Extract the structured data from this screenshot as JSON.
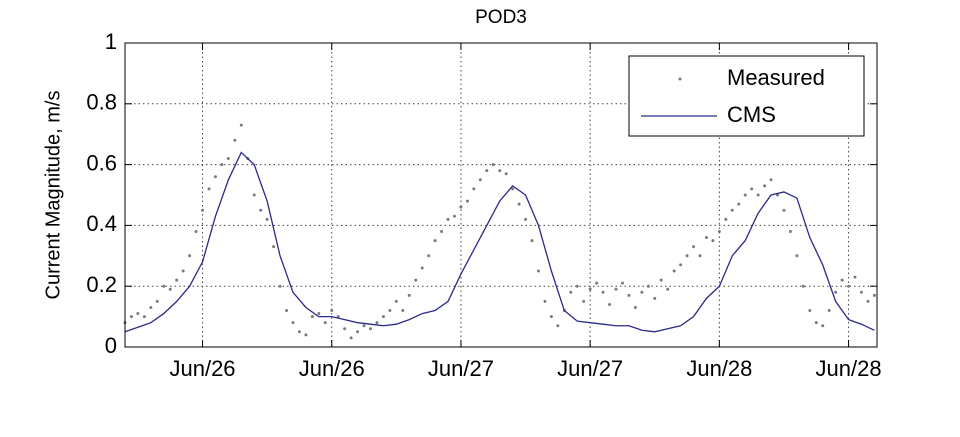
{
  "chart_data": {
    "type": "line",
    "title": "POD3",
    "y_label": "Current Magnitude, m/s",
    "xlim": [
      25.7,
      28.61
    ],
    "ylim": [
      0,
      1
    ],
    "xticks": [
      {
        "value": 26,
        "label": "Jun/26"
      },
      {
        "value": 26.5,
        "label": "Jun/26"
      },
      {
        "value": 27,
        "label": "Jun/27"
      },
      {
        "value": 27.5,
        "label": "Jun/27"
      },
      {
        "value": 28,
        "label": "Jun/28"
      },
      {
        "value": 28.5,
        "label": "Jun/28"
      }
    ],
    "yticks": [
      0,
      0.2,
      0.4,
      0.6,
      0.8,
      1
    ],
    "grid": true,
    "legend": "northeast",
    "series": [
      {
        "name": "Measured",
        "type": "scatter",
        "color": "#7a7a7a",
        "x": [
          25.7,
          25.725,
          25.75,
          25.775,
          25.8,
          25.825,
          25.85,
          25.875,
          25.9,
          25.925,
          25.95,
          25.975,
          26,
          26.025,
          26.05,
          26.075,
          26.1,
          26.125,
          26.15,
          26.175,
          26.2,
          26.225,
          26.25,
          26.275,
          26.3,
          26.325,
          26.35,
          26.375,
          26.4,
          26.425,
          26.45,
          26.475,
          26.5,
          26.525,
          26.55,
          26.575,
          26.6,
          26.625,
          26.65,
          26.675,
          26.7,
          26.725,
          26.75,
          26.775,
          26.8,
          26.825,
          26.85,
          26.875,
          26.9,
          26.925,
          26.95,
          26.975,
          27,
          27.025,
          27.05,
          27.075,
          27.1,
          27.125,
          27.15,
          27.175,
          27.2,
          27.225,
          27.25,
          27.275,
          27.3,
          27.325,
          27.35,
          27.375,
          27.4,
          27.425,
          27.45,
          27.475,
          27.5,
          27.525,
          27.55,
          27.575,
          27.6,
          27.625,
          27.65,
          27.675,
          27.7,
          27.725,
          27.75,
          27.775,
          27.8,
          27.825,
          27.85,
          27.875,
          27.9,
          27.925,
          27.95,
          27.975,
          28,
          28.025,
          28.05,
          28.075,
          28.1,
          28.125,
          28.15,
          28.175,
          28.2,
          28.225,
          28.25,
          28.275,
          28.3,
          28.325,
          28.35,
          28.375,
          28.4,
          28.425,
          28.45,
          28.475,
          28.5,
          28.525,
          28.55,
          28.575,
          28.6
        ],
        "values": [
          0.08,
          0.1,
          0.11,
          0.1,
          0.13,
          0.15,
          0.2,
          0.19,
          0.22,
          0.25,
          0.3,
          0.38,
          0.45,
          0.52,
          0.56,
          0.6,
          0.62,
          0.68,
          0.73,
          0.62,
          0.5,
          0.45,
          0.42,
          0.33,
          0.2,
          0.12,
          0.08,
          0.05,
          0.04,
          0.1,
          0.11,
          0.08,
          0.12,
          0.1,
          0.06,
          0.03,
          0.05,
          0.07,
          0.06,
          0.08,
          0.1,
          0.12,
          0.15,
          0.12,
          0.17,
          0.22,
          0.26,
          0.3,
          0.35,
          0.38,
          0.42,
          0.43,
          0.46,
          0.48,
          0.52,
          0.55,
          0.58,
          0.6,
          0.58,
          0.57,
          0.52,
          0.47,
          0.42,
          0.35,
          0.25,
          0.15,
          0.1,
          0.07,
          0.12,
          0.18,
          0.2,
          0.15,
          0.19,
          0.21,
          0.18,
          0.14,
          0.19,
          0.21,
          0.17,
          0.13,
          0.18,
          0.2,
          0.16,
          0.22,
          0.19,
          0.25,
          0.27,
          0.3,
          0.33,
          0.3,
          0.36,
          0.35,
          0.38,
          0.42,
          0.45,
          0.47,
          0.5,
          0.52,
          0.5,
          0.53,
          0.55,
          0.5,
          0.45,
          0.38,
          0.3,
          0.2,
          0.12,
          0.08,
          0.07,
          0.12,
          0.18,
          0.22,
          0.2,
          0.23,
          0.18,
          0.15,
          0.17
        ]
      },
      {
        "name": "CMS",
        "type": "line",
        "color": "#2a2a8a",
        "x": [
          25.7,
          25.75,
          25.8,
          25.85,
          25.9,
          25.95,
          26,
          26.05,
          26.1,
          26.15,
          26.2,
          26.25,
          26.3,
          26.35,
          26.4,
          26.45,
          26.5,
          26.55,
          26.6,
          26.65,
          26.7,
          26.75,
          26.8,
          26.85,
          26.9,
          26.95,
          27,
          27.05,
          27.1,
          27.15,
          27.2,
          27.25,
          27.3,
          27.35,
          27.4,
          27.45,
          27.5,
          27.55,
          27.6,
          27.65,
          27.7,
          27.75,
          27.8,
          27.85,
          27.9,
          27.95,
          28,
          28.05,
          28.1,
          28.15,
          28.2,
          28.25,
          28.3,
          28.35,
          28.4,
          28.45,
          28.5,
          28.55,
          28.6
        ],
        "values": [
          0.05,
          0.065,
          0.08,
          0.11,
          0.15,
          0.2,
          0.28,
          0.43,
          0.55,
          0.64,
          0.6,
          0.48,
          0.3,
          0.18,
          0.13,
          0.1,
          0.1,
          0.09,
          0.08,
          0.075,
          0.07,
          0.075,
          0.09,
          0.11,
          0.12,
          0.15,
          0.24,
          0.32,
          0.4,
          0.48,
          0.53,
          0.5,
          0.4,
          0.25,
          0.12,
          0.085,
          0.08,
          0.075,
          0.07,
          0.07,
          0.055,
          0.05,
          0.06,
          0.07,
          0.1,
          0.16,
          0.2,
          0.3,
          0.35,
          0.44,
          0.5,
          0.51,
          0.49,
          0.36,
          0.27,
          0.15,
          0.09,
          0.075,
          0.055
        ]
      }
    ]
  }
}
